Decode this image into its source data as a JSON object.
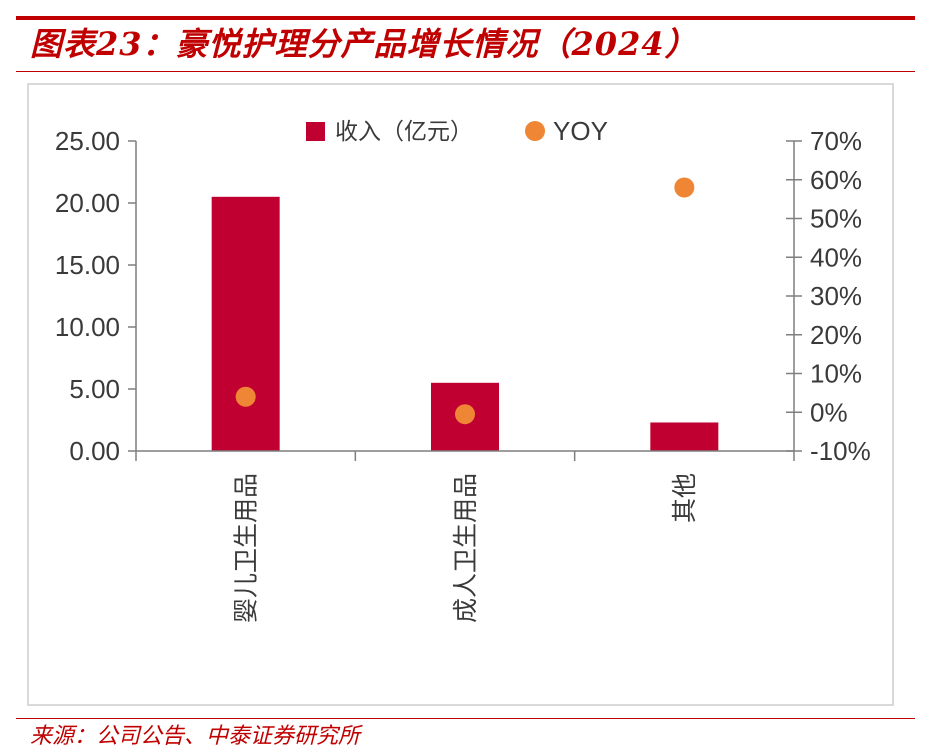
{
  "title": "图表23：豪悦护理分产品增长情况（2024）",
  "source": "来源：公司公告、中泰证券研究所",
  "colors": {
    "accent": "#c00000",
    "bar": "#c00030",
    "yoy": "#ef8636",
    "axis": "#7f7f7f",
    "text": "#3a3a3a"
  },
  "chart_data": {
    "type": "bar",
    "categories": [
      "婴儿卫生用品",
      "成人卫生用品",
      "其他"
    ],
    "series": [
      {
        "name": "收入（亿元）",
        "type": "bar",
        "axis": "left",
        "values": [
          20.5,
          5.5,
          2.3
        ]
      },
      {
        "name": "YOY",
        "type": "scatter",
        "axis": "right",
        "values": [
          0.04,
          -0.005,
          0.58
        ]
      }
    ],
    "y_left": {
      "min": 0,
      "max": 25,
      "ticks": [
        "0.00",
        "5.00",
        "10.00",
        "15.00",
        "20.00",
        "25.00"
      ]
    },
    "y_right": {
      "min": -0.1,
      "max": 0.7,
      "ticks": [
        "-10%",
        "0%",
        "10%",
        "20%",
        "30%",
        "40%",
        "50%",
        "60%",
        "70%"
      ]
    },
    "legend_position": "top-center",
    "grid": false
  }
}
